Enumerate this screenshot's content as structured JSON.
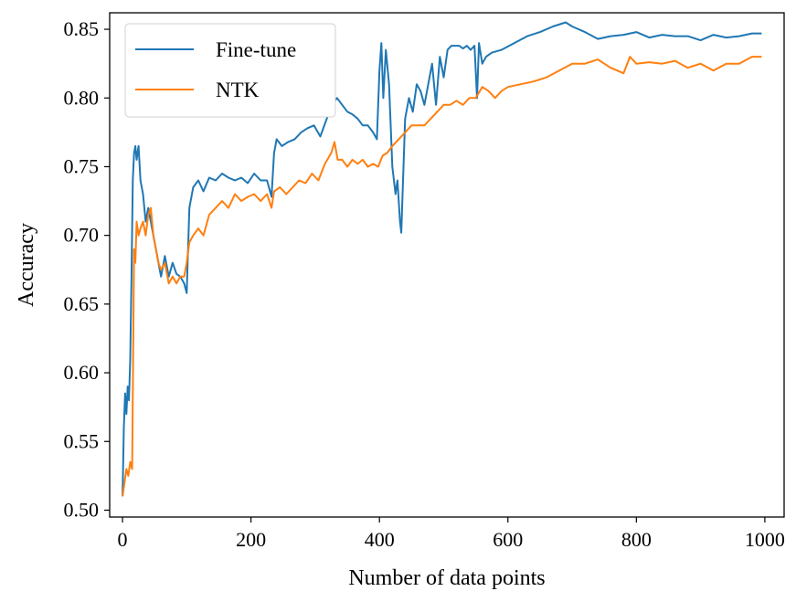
{
  "chart_data": {
    "type": "line",
    "title": "",
    "xlabel": "Number of data points",
    "ylabel": "Accuracy",
    "xlim": [
      -20,
      1030
    ],
    "ylim": [
      0.495,
      0.862
    ],
    "xticks": [
      0,
      200,
      400,
      600,
      800,
      1000
    ],
    "xtick_labels": [
      "0",
      "200",
      "400",
      "600",
      "800",
      "1000"
    ],
    "yticks": [
      0.5,
      0.55,
      0.6,
      0.65,
      0.7,
      0.75,
      0.8,
      0.85
    ],
    "ytick_labels": [
      "0.50",
      "0.55",
      "0.60",
      "0.65",
      "0.70",
      "0.75",
      "0.80",
      "0.85"
    ],
    "grid": false,
    "legend": {
      "location": "top-left"
    },
    "series": [
      {
        "name": "Fine-tune",
        "color": "#1f77b4",
        "x": [
          0,
          2,
          4,
          6,
          8,
          10,
          12,
          14,
          16,
          18,
          20,
          22,
          25,
          28,
          32,
          36,
          40,
          44,
          48,
          52,
          56,
          60,
          66,
          72,
          78,
          84,
          90,
          96,
          100,
          104,
          110,
          118,
          126,
          135,
          145,
          155,
          165,
          175,
          185,
          195,
          205,
          215,
          225,
          232,
          236,
          240,
          248,
          258,
          268,
          278,
          288,
          298,
          308,
          318,
          326,
          334,
          342,
          350,
          358,
          366,
          374,
          382,
          390,
          396,
          400,
          403,
          406,
          410,
          415,
          420,
          425,
          428,
          432,
          434,
          436,
          440,
          446,
          452,
          458,
          464,
          470,
          476,
          482,
          488,
          494,
          500,
          506,
          512,
          518,
          524,
          530,
          536,
          542,
          548,
          552,
          555,
          560,
          566,
          575,
          590,
          610,
          630,
          650,
          670,
          690,
          700,
          720,
          740,
          760,
          780,
          800,
          820,
          840,
          860,
          880,
          900,
          920,
          940,
          960,
          980,
          995
        ],
        "values": [
          0.51,
          0.56,
          0.585,
          0.57,
          0.59,
          0.58,
          0.61,
          0.67,
          0.74,
          0.76,
          0.765,
          0.755,
          0.765,
          0.74,
          0.73,
          0.71,
          0.72,
          0.71,
          0.7,
          0.69,
          0.68,
          0.67,
          0.685,
          0.67,
          0.68,
          0.672,
          0.67,
          0.665,
          0.658,
          0.72,
          0.735,
          0.74,
          0.732,
          0.742,
          0.74,
          0.745,
          0.742,
          0.74,
          0.742,
          0.738,
          0.745,
          0.74,
          0.74,
          0.728,
          0.76,
          0.77,
          0.765,
          0.768,
          0.77,
          0.775,
          0.778,
          0.78,
          0.772,
          0.785,
          0.795,
          0.8,
          0.795,
          0.79,
          0.788,
          0.785,
          0.78,
          0.78,
          0.775,
          0.77,
          0.82,
          0.84,
          0.8,
          0.835,
          0.81,
          0.75,
          0.73,
          0.74,
          0.71,
          0.702,
          0.73,
          0.785,
          0.8,
          0.79,
          0.81,
          0.805,
          0.795,
          0.81,
          0.825,
          0.795,
          0.83,
          0.815,
          0.835,
          0.838,
          0.838,
          0.838,
          0.836,
          0.838,
          0.835,
          0.838,
          0.8,
          0.84,
          0.825,
          0.83,
          0.833,
          0.835,
          0.84,
          0.845,
          0.848,
          0.852,
          0.855,
          0.852,
          0.848,
          0.843,
          0.845,
          0.846,
          0.848,
          0.844,
          0.846,
          0.845,
          0.845,
          0.842,
          0.846,
          0.844,
          0.845,
          0.847,
          0.847
        ]
      },
      {
        "name": "NTK",
        "color": "#ff7f0e",
        "x": [
          0,
          3,
          6,
          9,
          12,
          15,
          18,
          20,
          22,
          25,
          28,
          32,
          36,
          40,
          44,
          48,
          52,
          56,
          60,
          66,
          72,
          78,
          84,
          90,
          96,
          100,
          104,
          110,
          118,
          126,
          135,
          145,
          155,
          165,
          175,
          185,
          195,
          205,
          215,
          225,
          232,
          236,
          245,
          255,
          265,
          275,
          285,
          295,
          305,
          315,
          325,
          330,
          335,
          342,
          350,
          358,
          366,
          374,
          382,
          390,
          398,
          405,
          412,
          420,
          430,
          440,
          450,
          460,
          470,
          480,
          490,
          500,
          510,
          520,
          530,
          540,
          550,
          560,
          570,
          580,
          590,
          600,
          620,
          640,
          660,
          680,
          700,
          720,
          740,
          760,
          770,
          780,
          790,
          800,
          820,
          840,
          860,
          880,
          900,
          920,
          940,
          960,
          980,
          995
        ],
        "values": [
          0.51,
          0.52,
          0.53,
          0.525,
          0.535,
          0.53,
          0.69,
          0.68,
          0.71,
          0.7,
          0.705,
          0.71,
          0.7,
          0.715,
          0.72,
          0.7,
          0.69,
          0.68,
          0.675,
          0.68,
          0.665,
          0.67,
          0.665,
          0.67,
          0.67,
          0.68,
          0.695,
          0.7,
          0.705,
          0.7,
          0.715,
          0.72,
          0.725,
          0.72,
          0.73,
          0.725,
          0.728,
          0.73,
          0.725,
          0.73,
          0.72,
          0.732,
          0.735,
          0.73,
          0.735,
          0.74,
          0.738,
          0.745,
          0.74,
          0.752,
          0.76,
          0.768,
          0.755,
          0.755,
          0.75,
          0.755,
          0.752,
          0.755,
          0.75,
          0.752,
          0.75,
          0.758,
          0.76,
          0.765,
          0.77,
          0.775,
          0.78,
          0.78,
          0.78,
          0.785,
          0.79,
          0.795,
          0.795,
          0.798,
          0.795,
          0.8,
          0.8,
          0.808,
          0.805,
          0.8,
          0.805,
          0.808,
          0.81,
          0.812,
          0.815,
          0.82,
          0.825,
          0.825,
          0.828,
          0.822,
          0.82,
          0.818,
          0.83,
          0.825,
          0.826,
          0.825,
          0.827,
          0.822,
          0.825,
          0.82,
          0.825,
          0.825,
          0.83,
          0.83
        ]
      }
    ]
  }
}
